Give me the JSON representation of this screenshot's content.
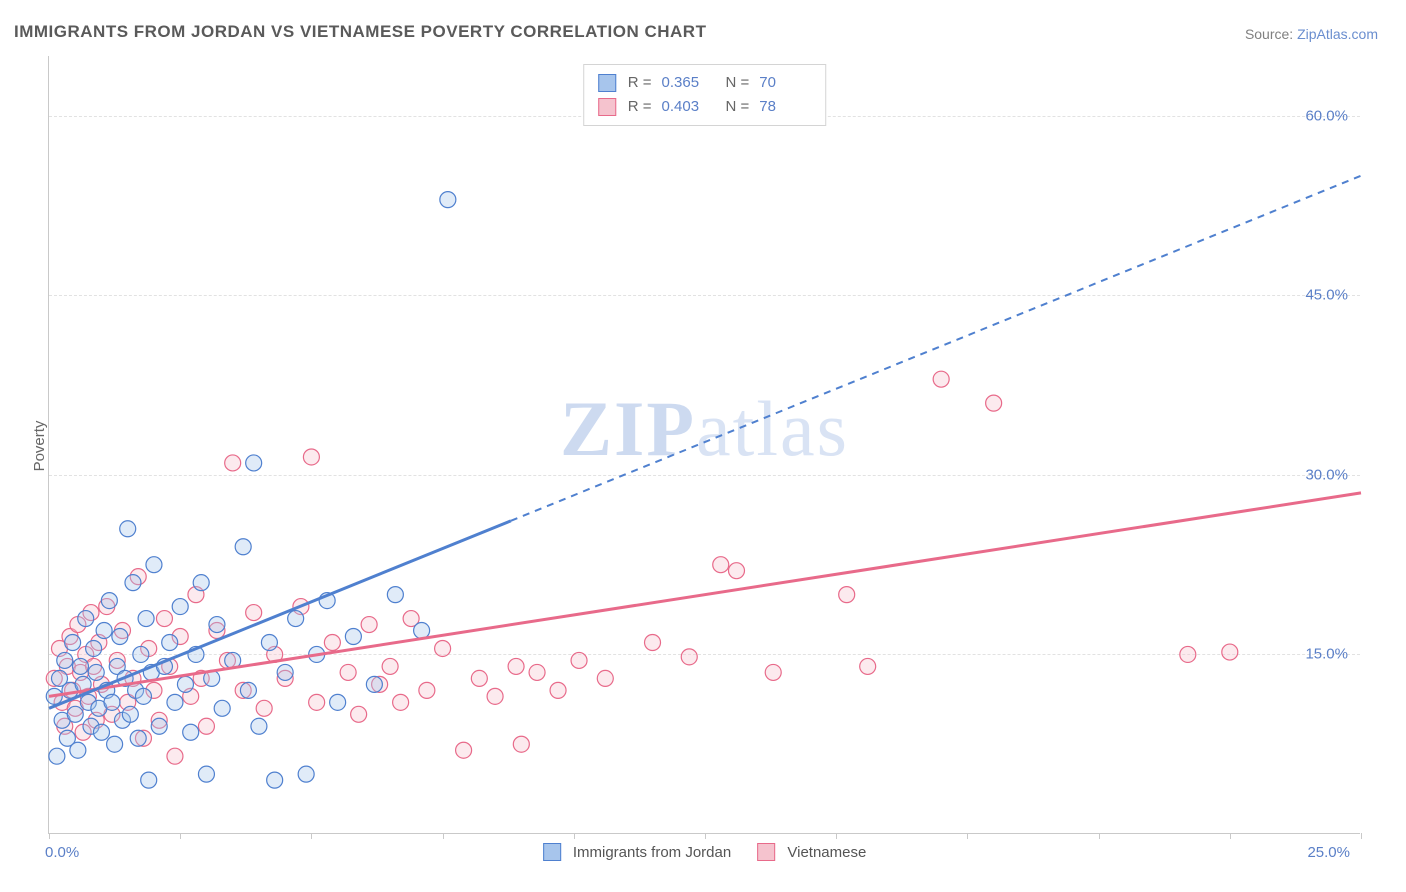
{
  "title": "IMMIGRANTS FROM JORDAN VS VIETNAMESE POVERTY CORRELATION CHART",
  "source_label": "Source:",
  "source_name": "ZipAtlas.com",
  "watermark_bold": "ZIP",
  "watermark_rest": "atlas",
  "ylabel": "Poverty",
  "chart": {
    "type": "scatter",
    "xlim": [
      0,
      25
    ],
    "ylim": [
      0,
      65
    ],
    "x_origin_label": "0.0%",
    "x_end_label": "25.0%",
    "yticks": [
      15,
      30,
      45,
      60
    ],
    "ytick_labels": [
      "15.0%",
      "30.0%",
      "45.0%",
      "60.0%"
    ],
    "xtick_positions": [
      0,
      2.5,
      5,
      7.5,
      10,
      12.5,
      15,
      17.5,
      20,
      22.5,
      25
    ],
    "grid_color": "#e2e2e2",
    "background_color": "#ffffff",
    "axis_color": "#c9c9c9",
    "label_color": "#5a7fc7"
  },
  "series": {
    "blue": {
      "name": "Immigrants from Jordan",
      "color_fill": "#a7c5ec",
      "color_stroke": "#4f80cf",
      "marker_radius": 8,
      "R": "0.365",
      "N": "70",
      "trend": {
        "x1": 0,
        "y1": 10.5,
        "x2": 25,
        "y2": 55,
        "solid_until_x": 8.8
      },
      "points": [
        [
          0.1,
          11.5
        ],
        [
          0.15,
          6.5
        ],
        [
          0.2,
          13
        ],
        [
          0.25,
          9.5
        ],
        [
          0.3,
          14.5
        ],
        [
          0.35,
          8
        ],
        [
          0.4,
          12
        ],
        [
          0.45,
          16
        ],
        [
          0.5,
          10
        ],
        [
          0.55,
          7
        ],
        [
          0.6,
          14
        ],
        [
          0.65,
          12.5
        ],
        [
          0.7,
          18
        ],
        [
          0.75,
          11
        ],
        [
          0.8,
          9
        ],
        [
          0.85,
          15.5
        ],
        [
          0.9,
          13.5
        ],
        [
          0.95,
          10.5
        ],
        [
          1.0,
          8.5
        ],
        [
          1.05,
          17
        ],
        [
          1.1,
          12
        ],
        [
          1.15,
          19.5
        ],
        [
          1.2,
          11
        ],
        [
          1.25,
          7.5
        ],
        [
          1.3,
          14
        ],
        [
          1.35,
          16.5
        ],
        [
          1.4,
          9.5
        ],
        [
          1.45,
          13
        ],
        [
          1.5,
          25.5
        ],
        [
          1.55,
          10
        ],
        [
          1.6,
          21
        ],
        [
          1.65,
          12
        ],
        [
          1.7,
          8
        ],
        [
          1.75,
          15
        ],
        [
          1.8,
          11.5
        ],
        [
          1.85,
          18
        ],
        [
          1.9,
          4.5
        ],
        [
          1.95,
          13.5
        ],
        [
          2.0,
          22.5
        ],
        [
          2.1,
          9
        ],
        [
          2.2,
          14
        ],
        [
          2.3,
          16
        ],
        [
          2.4,
          11
        ],
        [
          2.5,
          19
        ],
        [
          2.6,
          12.5
        ],
        [
          2.7,
          8.5
        ],
        [
          2.8,
          15
        ],
        [
          2.9,
          21
        ],
        [
          3.0,
          5
        ],
        [
          3.1,
          13
        ],
        [
          3.2,
          17.5
        ],
        [
          3.3,
          10.5
        ],
        [
          3.5,
          14.5
        ],
        [
          3.7,
          24
        ],
        [
          3.8,
          12
        ],
        [
          3.9,
          31
        ],
        [
          4.0,
          9
        ],
        [
          4.2,
          16
        ],
        [
          4.3,
          4.5
        ],
        [
          4.5,
          13.5
        ],
        [
          4.7,
          18
        ],
        [
          4.9,
          5
        ],
        [
          5.1,
          15
        ],
        [
          5.3,
          19.5
        ],
        [
          5.5,
          11
        ],
        [
          5.8,
          16.5
        ],
        [
          6.2,
          12.5
        ],
        [
          6.6,
          20
        ],
        [
          7.1,
          17
        ],
        [
          7.6,
          53
        ]
      ]
    },
    "pink": {
      "name": "Vietnamese",
      "color_fill": "#f5c3ce",
      "color_stroke": "#e86a8a",
      "marker_radius": 8,
      "R": "0.403",
      "N": "78",
      "trend": {
        "x1": 0,
        "y1": 11.5,
        "x2": 25,
        "y2": 28.5,
        "solid_until_x": 25
      },
      "points": [
        [
          0.1,
          13
        ],
        [
          0.2,
          15.5
        ],
        [
          0.25,
          11
        ],
        [
          0.3,
          9
        ],
        [
          0.35,
          14
        ],
        [
          0.4,
          16.5
        ],
        [
          0.45,
          12
        ],
        [
          0.5,
          10.5
        ],
        [
          0.55,
          17.5
        ],
        [
          0.6,
          13.5
        ],
        [
          0.65,
          8.5
        ],
        [
          0.7,
          15
        ],
        [
          0.75,
          11.5
        ],
        [
          0.8,
          18.5
        ],
        [
          0.85,
          14
        ],
        [
          0.9,
          9.5
        ],
        [
          0.95,
          16
        ],
        [
          1.0,
          12.5
        ],
        [
          1.1,
          19
        ],
        [
          1.2,
          10
        ],
        [
          1.3,
          14.5
        ],
        [
          1.4,
          17
        ],
        [
          1.5,
          11
        ],
        [
          1.6,
          13
        ],
        [
          1.7,
          21.5
        ],
        [
          1.8,
          8
        ],
        [
          1.9,
          15.5
        ],
        [
          2.0,
          12
        ],
        [
          2.1,
          9.5
        ],
        [
          2.2,
          18
        ],
        [
          2.3,
          14
        ],
        [
          2.4,
          6.5
        ],
        [
          2.5,
          16.5
        ],
        [
          2.7,
          11.5
        ],
        [
          2.8,
          20
        ],
        [
          2.9,
          13
        ],
        [
          3.0,
          9
        ],
        [
          3.2,
          17
        ],
        [
          3.4,
          14.5
        ],
        [
          3.5,
          31
        ],
        [
          3.7,
          12
        ],
        [
          3.9,
          18.5
        ],
        [
          4.1,
          10.5
        ],
        [
          4.3,
          15
        ],
        [
          4.5,
          13
        ],
        [
          4.8,
          19
        ],
        [
          5.0,
          31.5
        ],
        [
          5.1,
          11
        ],
        [
          5.4,
          16
        ],
        [
          5.7,
          13.5
        ],
        [
          5.9,
          10
        ],
        [
          6.1,
          17.5
        ],
        [
          6.3,
          12.5
        ],
        [
          6.5,
          14
        ],
        [
          6.7,
          11
        ],
        [
          6.9,
          18
        ],
        [
          7.2,
          12
        ],
        [
          7.5,
          15.5
        ],
        [
          7.9,
          7
        ],
        [
          8.2,
          13
        ],
        [
          8.5,
          11.5
        ],
        [
          8.9,
          14
        ],
        [
          9.0,
          7.5
        ],
        [
          9.3,
          13.5
        ],
        [
          9.7,
          12
        ],
        [
          10.1,
          14.5
        ],
        [
          10.6,
          13
        ],
        [
          12.8,
          22.5
        ],
        [
          13.1,
          22
        ],
        [
          13.8,
          13.5
        ],
        [
          15.2,
          20
        ],
        [
          15.6,
          14
        ],
        [
          17.0,
          38
        ],
        [
          18.0,
          36
        ],
        [
          21.7,
          15
        ],
        [
          22.5,
          15.2
        ],
        [
          11.5,
          16
        ],
        [
          12.2,
          14.8
        ]
      ]
    }
  },
  "legend_bottom": [
    {
      "swatch_fill": "#a7c5ec",
      "swatch_stroke": "#4f80cf",
      "label": "Immigrants from Jordan"
    },
    {
      "swatch_fill": "#f5c3ce",
      "swatch_stroke": "#e86a8a",
      "label": "Vietnamese"
    }
  ],
  "legend_top_rows": [
    {
      "swatch_fill": "#a7c5ec",
      "swatch_stroke": "#4f80cf",
      "R": "0.365",
      "N": "70"
    },
    {
      "swatch_fill": "#f5c3ce",
      "swatch_stroke": "#e86a8a",
      "R": "0.403",
      "N": "78"
    }
  ]
}
